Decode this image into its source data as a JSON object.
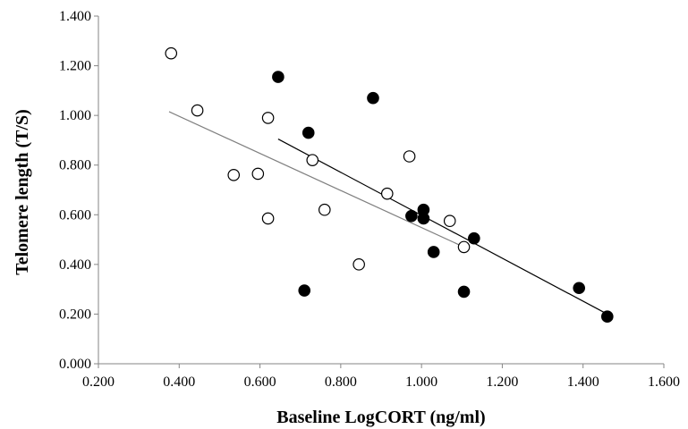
{
  "chart_data": {
    "type": "scatter",
    "title": "",
    "xlabel": "Baseline LogCORT (ng/ml)",
    "ylabel": "Telomere length (T/S)",
    "xlim": [
      0.2,
      1.6
    ],
    "ylim": [
      0.0,
      1.4
    ],
    "x_ticks": [
      "0.200",
      "0.400",
      "0.600",
      "0.800",
      "1.000",
      "1.200",
      "1.400",
      "1.600"
    ],
    "y_ticks": [
      "0.000",
      "0.200",
      "0.400",
      "0.600",
      "0.800",
      "1.000",
      "1.200",
      "1.400"
    ],
    "grid": false,
    "legend": "none",
    "series": [
      {
        "marker": "open-circle",
        "color": "#000000",
        "trendline_color": "#808080",
        "points": [
          {
            "x": 0.38,
            "y": 1.25
          },
          {
            "x": 0.445,
            "y": 1.02
          },
          {
            "x": 0.535,
            "y": 0.76
          },
          {
            "x": 0.595,
            "y": 0.765
          },
          {
            "x": 0.62,
            "y": 0.585
          },
          {
            "x": 0.62,
            "y": 0.99
          },
          {
            "x": 0.73,
            "y": 0.82
          },
          {
            "x": 0.76,
            "y": 0.62
          },
          {
            "x": 0.845,
            "y": 0.4
          },
          {
            "x": 0.915,
            "y": 0.685
          },
          {
            "x": 0.97,
            "y": 0.835
          },
          {
            "x": 1.07,
            "y": 0.575
          },
          {
            "x": 1.105,
            "y": 0.47
          }
        ],
        "trendline": [
          {
            "x": 0.375,
            "y": 1.015
          },
          {
            "x": 1.105,
            "y": 0.47
          }
        ]
      },
      {
        "marker": "filled-circle",
        "color": "#000000",
        "trendline_color": "#000000",
        "points": [
          {
            "x": 0.645,
            "y": 1.155
          },
          {
            "x": 0.72,
            "y": 0.93
          },
          {
            "x": 0.71,
            "y": 0.295
          },
          {
            "x": 0.88,
            "y": 1.07
          },
          {
            "x": 0.975,
            "y": 0.595
          },
          {
            "x": 1.005,
            "y": 0.62
          },
          {
            "x": 1.005,
            "y": 0.585
          },
          {
            "x": 1.03,
            "y": 0.45
          },
          {
            "x": 1.105,
            "y": 0.29
          },
          {
            "x": 1.13,
            "y": 0.505
          },
          {
            "x": 1.39,
            "y": 0.305
          },
          {
            "x": 1.46,
            "y": 0.19
          }
        ],
        "trendline": [
          {
            "x": 0.645,
            "y": 0.905
          },
          {
            "x": 1.46,
            "y": 0.2
          }
        ]
      }
    ]
  }
}
